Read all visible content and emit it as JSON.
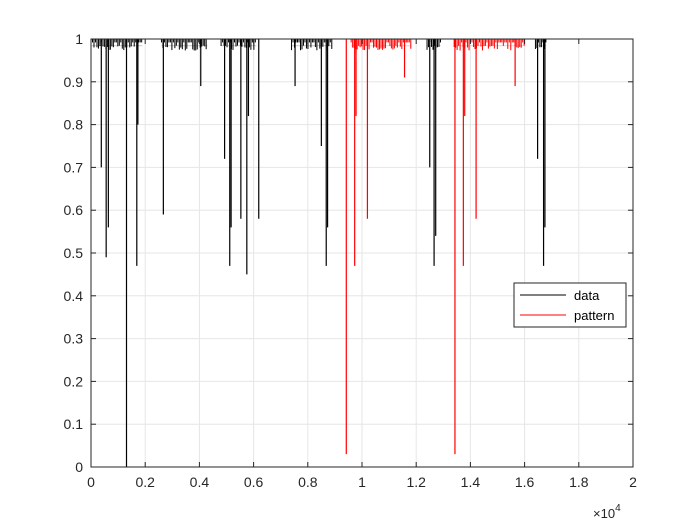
{
  "chart_data": {
    "type": "line",
    "xlim": [
      0,
      20000
    ],
    "ylim": [
      0,
      1
    ],
    "x_ticks": [
      0,
      2000,
      4000,
      6000,
      8000,
      10000,
      12000,
      14000,
      16000,
      18000,
      20000
    ],
    "x_tick_labels": [
      "0",
      "0.2",
      "0.4",
      "0.6",
      "0.8",
      "1",
      "1.2",
      "1.4",
      "1.6",
      "1.8",
      "2"
    ],
    "x_exponent_label": "×10",
    "x_exponent_power": "4",
    "y_ticks": [
      0,
      0.1,
      0.2,
      0.3,
      0.4,
      0.5,
      0.6,
      0.7,
      0.8,
      0.9,
      1
    ],
    "y_tick_labels": [
      "0",
      "0.1",
      "0.2",
      "0.3",
      "0.4",
      "0.5",
      "0.6",
      "0.7",
      "0.8",
      "0.9",
      "1"
    ],
    "grid": true,
    "legend_position": "right",
    "baseline": 1,
    "series": [
      {
        "name": "data",
        "color": "#000000",
        "x_range": [
          0,
          20000
        ],
        "noisy_segments": [
          [
            0,
            1900
          ],
          [
            2600,
            4300
          ],
          [
            4800,
            6100
          ],
          [
            7400,
            8900
          ],
          [
            12400,
            12900
          ],
          [
            16400,
            16800
          ]
        ],
        "dips": [
          {
            "x": 380,
            "y": 0.7
          },
          {
            "x": 560,
            "y": 0.49
          },
          {
            "x": 640,
            "y": 0.56
          },
          {
            "x": 1310,
            "y": 0.0
          },
          {
            "x": 1690,
            "y": 0.47
          },
          {
            "x": 1730,
            "y": 0.8
          },
          {
            "x": 2670,
            "y": 0.59
          },
          {
            "x": 4050,
            "y": 0.89
          },
          {
            "x": 4930,
            "y": 0.72
          },
          {
            "x": 5120,
            "y": 0.47
          },
          {
            "x": 5170,
            "y": 0.56
          },
          {
            "x": 5530,
            "y": 0.58
          },
          {
            "x": 5750,
            "y": 0.45
          },
          {
            "x": 5810,
            "y": 0.82
          },
          {
            "x": 6190,
            "y": 0.58
          },
          {
            "x": 7530,
            "y": 0.89
          },
          {
            "x": 8500,
            "y": 0.75
          },
          {
            "x": 8680,
            "y": 0.47
          },
          {
            "x": 8730,
            "y": 0.56
          },
          {
            "x": 12500,
            "y": 0.7
          },
          {
            "x": 12660,
            "y": 0.47
          },
          {
            "x": 12720,
            "y": 0.54
          },
          {
            "x": 16480,
            "y": 0.72
          },
          {
            "x": 16700,
            "y": 0.47
          },
          {
            "x": 16750,
            "y": 0.56
          }
        ]
      },
      {
        "name": "pattern",
        "color": "#ff0000",
        "x_range": [
          8900,
          16400
        ],
        "noisy_segments": [
          [
            9600,
            11800
          ],
          [
            13400,
            16000
          ]
        ],
        "dips": [
          {
            "x": 9420,
            "y": 0.03
          },
          {
            "x": 9730,
            "y": 0.47
          },
          {
            "x": 9780,
            "y": 0.82
          },
          {
            "x": 10200,
            "y": 0.58
          },
          {
            "x": 11570,
            "y": 0.91
          },
          {
            "x": 13430,
            "y": 0.03
          },
          {
            "x": 13740,
            "y": 0.47
          },
          {
            "x": 13790,
            "y": 0.82
          },
          {
            "x": 14210,
            "y": 0.58
          },
          {
            "x": 15650,
            "y": 0.89
          }
        ]
      }
    ]
  }
}
